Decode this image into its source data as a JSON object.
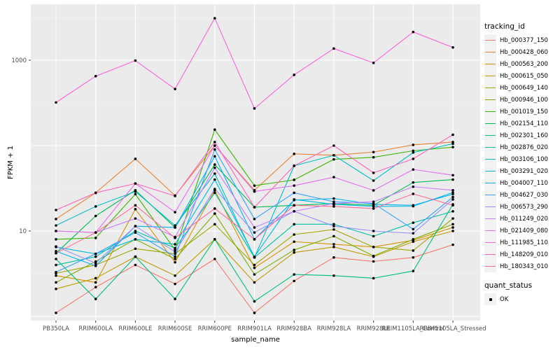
{
  "figure": {
    "background": "#FFFFFF",
    "panel_background": "#EBEBEB",
    "grid_color": "#FFFFFF",
    "axis_text_color": "#4D4D4D",
    "point_color": "#000000"
  },
  "axes": {
    "y_title": "FPKM + 1",
    "x_title": "sample_name",
    "y_ticks": [
      {
        "value": 1000,
        "label": "1000"
      },
      {
        "value": 10,
        "label": "10"
      }
    ]
  },
  "legend": {
    "tracking_title": "tracking_id",
    "quant_title": "quant_status",
    "quant_entries": [
      {
        "label": "OK"
      }
    ]
  },
  "chart_data": {
    "type": "line",
    "title": "",
    "xlabel": "sample_name",
    "ylabel": "FPKM + 1",
    "y_scale": "log10",
    "y_axis_breaks": [
      10,
      1000
    ],
    "grid": "on",
    "legend_position": "right",
    "quant_status": "OK",
    "categories": [
      "PB350LA",
      "RRIM600LA",
      "RRIM600LE",
      "RRIM600SE",
      "RRIM600PE",
      "RRIM901LA",
      "RRIM928BA",
      "RRIM928LA",
      "RRIM928LE",
      "RRIM1105LA_Control",
      "RRIM1105LA_Stressed"
    ],
    "series": [
      {
        "name": "Hb_000377_150",
        "color": "#F8766D",
        "values": [
          1.1,
          2.2,
          4.0,
          2.4,
          4.7,
          1.1,
          2.6,
          4.9,
          4.4,
          4.9,
          6.9
        ]
      },
      {
        "name": "Hb_000428_060",
        "color": "#EA8331",
        "values": [
          13.8,
          28,
          70,
          26,
          100,
          30,
          80,
          77,
          84,
          102,
          110
        ]
      },
      {
        "name": "Hb_000563_200",
        "color": "#D89000",
        "values": [
          3.0,
          2.5,
          18,
          4.3,
          30,
          3.7,
          7.5,
          7.0,
          6.5,
          7.8,
          11
        ]
      },
      {
        "name": "Hb_000615_050",
        "color": "#C09B00",
        "values": [
          2.1,
          2.8,
          5.0,
          3.0,
          8.0,
          2.5,
          5.6,
          6.5,
          5.0,
          7.5,
          10
        ]
      },
      {
        "name": "Hb_000649_140",
        "color": "#A3A500",
        "values": [
          3.2,
          4.0,
          6.2,
          5.4,
          12,
          4.0,
          9.1,
          10.4,
          6.5,
          5.9,
          14
        ]
      },
      {
        "name": "Hb_000946_100",
        "color": "#7CAE00",
        "values": [
          2.5,
          4.4,
          8.0,
          4.7,
          16,
          3.1,
          6.0,
          8.7,
          5.1,
          8.0,
          12
        ]
      },
      {
        "name": "Hb_001019_150",
        "color": "#39B600",
        "values": [
          8.0,
          8.3,
          27,
          6.0,
          154,
          34,
          39.7,
          69,
          73,
          87,
          96
        ]
      },
      {
        "name": "Hb_002154_110",
        "color": "#00BB4E",
        "values": [
          5.5,
          15,
          30,
          11,
          60,
          19,
          20,
          21,
          20,
          37,
          40
        ]
      },
      {
        "name": "Hb_002301_160",
        "color": "#00BF7D",
        "values": [
          4.7,
          1.6,
          5.0,
          1.6,
          8.0,
          1.5,
          3.1,
          3.0,
          2.8,
          3.4,
          20.5
        ]
      },
      {
        "name": "Hb_002876_020",
        "color": "#00C1A3",
        "values": [
          4.0,
          5.0,
          10,
          6.3,
          28,
          4.9,
          12,
          12,
          8.7,
          12.5,
          17
        ]
      },
      {
        "name": "Hb_003106_100",
        "color": "#00BFC4",
        "values": [
          11.6,
          19.4,
          29,
          11.6,
          47,
          4.9,
          58,
          77,
          38.9,
          83,
          105
        ]
      },
      {
        "name": "Hb_003291_020",
        "color": "#00BAE0",
        "values": [
          6.5,
          5.4,
          8.0,
          7.0,
          40,
          5.0,
          23.4,
          20.5,
          19.4,
          19.5,
          28.2
        ]
      },
      {
        "name": "Hb_004007_110",
        "color": "#00B0F6",
        "values": [
          5.8,
          3.9,
          11.4,
          11.0,
          75,
          8.0,
          23.0,
          24,
          20.5,
          20,
          27
        ]
      },
      {
        "name": "Hb_004627_030",
        "color": "#35A2FF",
        "values": [
          3.3,
          5.4,
          9.6,
          5.0,
          90,
          13.8,
          28,
          22,
          21,
          10.5,
          25
        ]
      },
      {
        "name": "Hb_006573_290",
        "color": "#9590FF",
        "values": [
          6.6,
          4.2,
          11.4,
          5.7,
          31,
          9.6,
          17,
          11.4,
          10,
          9.4,
          23.4
        ]
      },
      {
        "name": "Hb_011249_020",
        "color": "#C77CFF",
        "values": [
          10,
          9.6,
          14,
          8.5,
          55,
          11,
          17,
          21,
          22,
          33,
          30
        ]
      },
      {
        "name": "Hb_021409_080",
        "color": "#E76BF3",
        "values": [
          10.0,
          9.6,
          36,
          16.6,
          100,
          29,
          34,
          42.7,
          29.9,
          52.5,
          45
        ]
      },
      {
        "name": "Hb_111985_110",
        "color": "#FA62DB",
        "values": [
          320,
          650,
          990,
          460,
          3100,
          272,
          673,
          1370,
          930,
          2140,
          1410
        ]
      },
      {
        "name": "Hb_148209_010",
        "color": "#FF62BC",
        "values": [
          17.6,
          28,
          36,
          25.7,
          110,
          19,
          58,
          100,
          48,
          70,
          134
        ]
      },
      {
        "name": "Hb_180343_010",
        "color": "#FF6A98",
        "values": [
          5.5,
          9.6,
          20,
          8.3,
          18.3,
          8.0,
          20,
          19.4,
          18.3,
          27.2,
          20
        ]
      }
    ]
  }
}
